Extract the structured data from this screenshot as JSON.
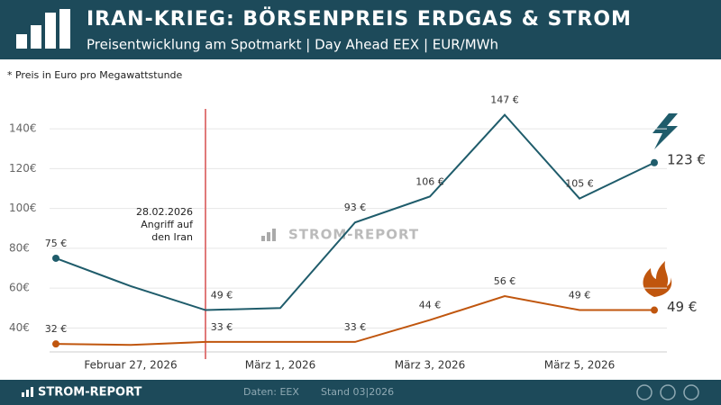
{
  "header": {
    "title": "IRAN-KRIEG: BÖRSENPREIS ERDGAS & STROM",
    "subtitle": "Preisentwicklung am Spotmarkt | Day Ahead EEX | EUR/MWh"
  },
  "chart_data": {
    "type": "line",
    "note": "* Preis in Euro pro Megawattstunde",
    "watermark": "STROM-REPORT",
    "categories": [
      null,
      "Februar 27, 2026",
      null,
      "März 1, 2026",
      null,
      "März 3, 2026",
      null,
      "März 5, 2026",
      null
    ],
    "series": [
      {
        "color": "#1f5c6b",
        "values": [
          75,
          61,
          49,
          50,
          93,
          106,
          147,
          105,
          123
        ],
        "value_labels": [
          "75 €",
          null,
          "49 €",
          null,
          "93 €",
          "106 €",
          "147 €",
          "105 €",
          "123 €"
        ]
      },
      {
        "color": "#c0560e",
        "values": [
          32,
          31.5,
          33,
          33,
          33,
          44,
          56,
          49,
          49
        ],
        "value_labels": [
          "32 €",
          null,
          "33 €",
          null,
          "33 €",
          "44 €",
          "56 €",
          "49 €",
          "49 €"
        ]
      }
    ],
    "ylim": [
      28,
      150
    ],
    "yticks": [
      {
        "value": 40,
        "label": "40€"
      },
      {
        "value": 60,
        "label": "60€"
      },
      {
        "value": 80,
        "label": "80€"
      },
      {
        "value": 100,
        "label": "100€"
      },
      {
        "value": 120,
        "label": "120€"
      },
      {
        "value": 140,
        "label": "140€"
      }
    ],
    "grid": true,
    "annotation": {
      "lines": [
        "28.02.2026",
        "Angriff auf",
        "den Iran"
      ],
      "color": "#e07a7a"
    }
  },
  "footer": {
    "brand": "STROM-REPORT",
    "source": "Daten: EEX",
    "date": "Stand 03|2026"
  }
}
